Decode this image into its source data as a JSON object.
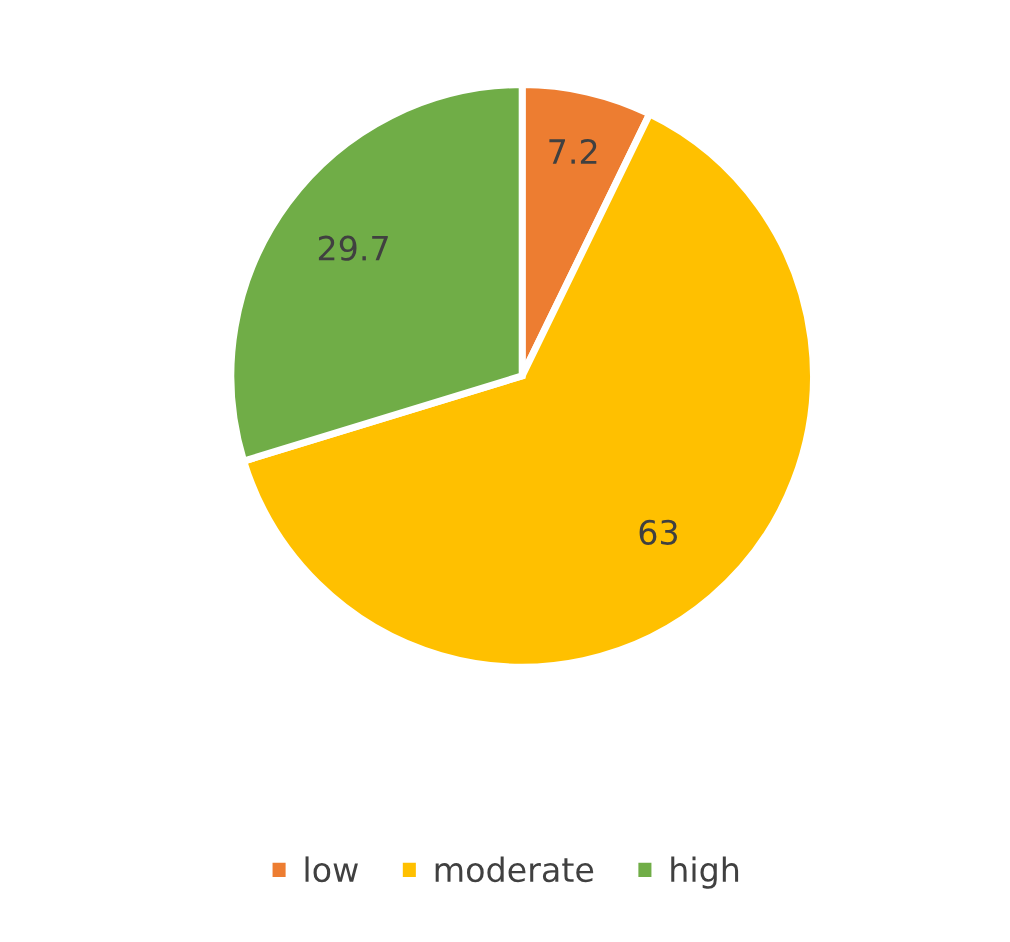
{
  "chart_data": {
    "type": "pie",
    "categories": [
      "low",
      "moderate",
      "high"
    ],
    "values": [
      7.2,
      63,
      29.7
    ],
    "colors": [
      "#ed7d31",
      "#ffc000",
      "#70ad47"
    ],
    "data_labels": true,
    "legend": "bottom"
  }
}
